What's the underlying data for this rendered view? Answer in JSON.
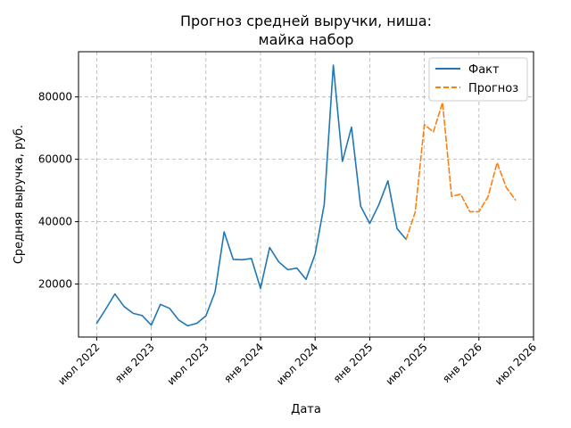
{
  "chart_data": {
    "type": "line",
    "title_lines": [
      "Прогноз средней выручки, ниша:",
      "майка набор"
    ],
    "xlabel": "Дата",
    "ylabel": "Средняя выручка, руб.",
    "ylim": [
      3000,
      94500
    ],
    "yticks": [
      20000,
      40000,
      60000,
      80000
    ],
    "xticks": [
      {
        "date": "2022-07",
        "label": "июл 2022"
      },
      {
        "date": "2023-01",
        "label": "янв 2023"
      },
      {
        "date": "2023-07",
        "label": "июл 2023"
      },
      {
        "date": "2024-01",
        "label": "янв 2024"
      },
      {
        "date": "2024-07",
        "label": "июл 2024"
      },
      {
        "date": "2025-01",
        "label": "янв 2025"
      },
      {
        "date": "2025-07",
        "label": "июл 2025"
      },
      {
        "date": "2026-01",
        "label": "янв 2026"
      },
      {
        "date": "2026-07",
        "label": "июл 2026"
      }
    ],
    "xlim": [
      "2022-05",
      "2026-07"
    ],
    "grid": true,
    "legend_position": "top-right",
    "series": [
      {
        "name": "Факт",
        "color": "#1f77b4",
        "style": "solid",
        "points": [
          [
            "2022-07",
            7400
          ],
          [
            "2022-08",
            12000
          ],
          [
            "2022-09",
            16800
          ],
          [
            "2022-10",
            12800
          ],
          [
            "2022-11",
            10600
          ],
          [
            "2022-12",
            9900
          ],
          [
            "2023-01",
            6800
          ],
          [
            "2023-02",
            13500
          ],
          [
            "2023-03",
            12200
          ],
          [
            "2023-04",
            8500
          ],
          [
            "2023-05",
            6600
          ],
          [
            "2023-06",
            7400
          ],
          [
            "2023-07",
            9800
          ],
          [
            "2023-08",
            17400
          ],
          [
            "2023-09",
            36700
          ],
          [
            "2023-10",
            27900
          ],
          [
            "2023-11",
            27800
          ],
          [
            "2023-12",
            28200
          ],
          [
            "2024-01",
            18600
          ],
          [
            "2024-02",
            31700
          ],
          [
            "2024-03",
            27100
          ],
          [
            "2024-04",
            24600
          ],
          [
            "2024-05",
            25100
          ],
          [
            "2024-06",
            21500
          ],
          [
            "2024-07",
            29600
          ],
          [
            "2024-08",
            45500
          ],
          [
            "2024-09",
            90200
          ],
          [
            "2024-10",
            59300
          ],
          [
            "2024-11",
            70300
          ],
          [
            "2024-12",
            45000
          ],
          [
            "2025-01",
            39400
          ],
          [
            "2025-02",
            45400
          ],
          [
            "2025-03",
            53100
          ],
          [
            "2025-04",
            37800
          ],
          [
            "2025-05",
            34300
          ]
        ]
      },
      {
        "name": "Прогноз",
        "color": "#ff7f0e",
        "style": "dashed",
        "points": [
          [
            "2025-05",
            34300
          ],
          [
            "2025-06",
            43100
          ],
          [
            "2025-07",
            71100
          ],
          [
            "2025-08",
            68800
          ],
          [
            "2025-09",
            78200
          ],
          [
            "2025-10",
            48100
          ],
          [
            "2025-11",
            48800
          ],
          [
            "2025-12",
            43200
          ],
          [
            "2026-01",
            43200
          ],
          [
            "2026-02",
            48000
          ],
          [
            "2026-03",
            58900
          ],
          [
            "2026-04",
            51000
          ],
          [
            "2026-05",
            47000
          ]
        ]
      }
    ]
  }
}
